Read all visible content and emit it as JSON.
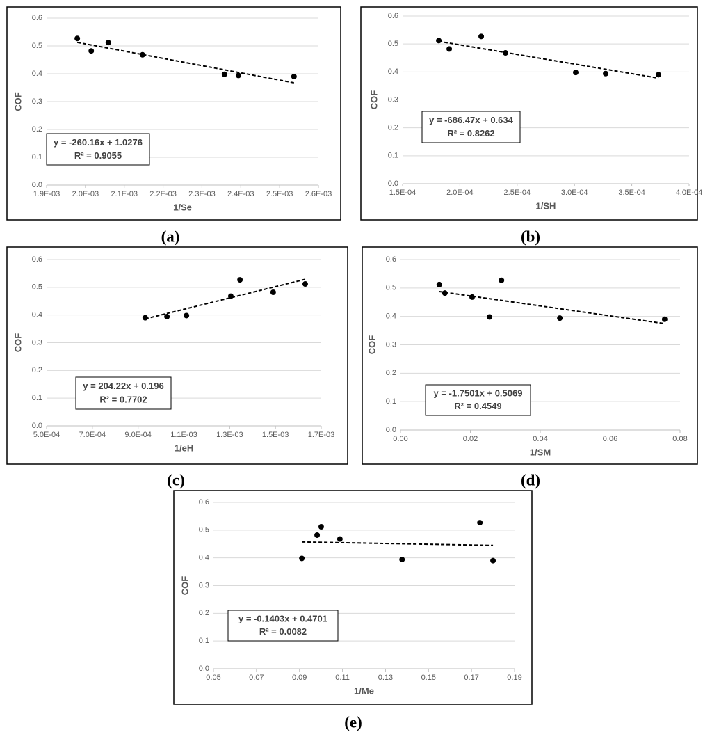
{
  "chart_data": [
    {
      "type": "scatter",
      "caption": "(a)",
      "x_label": "1/Se",
      "y_label": "COF",
      "x": [
        0.001979,
        0.002015,
        0.002059,
        0.002147,
        0.002358,
        0.002394,
        0.002537
      ],
      "values": [
        0.527,
        0.482,
        0.512,
        0.468,
        0.398,
        0.394,
        0.39
      ],
      "color": "#000000",
      "trendline": {
        "slope": -260.16,
        "intercept": 1.0276,
        "style": "dashed"
      },
      "equation": "y = -260.16x + 1.0276",
      "r_squared": "R² = 0.9055",
      "xlim": [
        0.0019,
        0.0026
      ],
      "xticks": [
        {
          "value": 0.0019,
          "label": "1.9E-03"
        },
        {
          "value": 0.002,
          "label": "2.0E-03"
        },
        {
          "value": 0.0021,
          "label": "2.1E-03"
        },
        {
          "value": 0.0022,
          "label": "2.2E-03"
        },
        {
          "value": 0.0023,
          "label": "2.3E-03"
        },
        {
          "value": 0.0024,
          "label": "2.4E-03"
        },
        {
          "value": 0.0025,
          "label": "2.5E-03"
        },
        {
          "value": 0.0026,
          "label": "2.6E-03"
        }
      ],
      "ylim": [
        0,
        0.6
      ],
      "yticks": [
        {
          "value": 0,
          "label": "0.0"
        },
        0.1,
        0.2,
        0.3,
        0.4,
        0.5,
        0.6
      ],
      "grid": true
    },
    {
      "type": "scatter",
      "caption": "(b)",
      "x_label": "1/SH",
      "y_label": "COF",
      "x": [
        0.0001816,
        0.0001907,
        0.0002186,
        0.0002398,
        0.0003011,
        0.0003272,
        0.0003733
      ],
      "values": [
        0.512,
        0.482,
        0.527,
        0.468,
        0.398,
        0.394,
        0.39
      ],
      "color": "#000000",
      "trendline": {
        "slope": -686.47,
        "intercept": 0.634,
        "style": "dashed"
      },
      "equation": "y = -686.47x + 0.634",
      "r_squared": "R² = 0.8262",
      "xlim": [
        0.00015,
        0.0004
      ],
      "xticks": [
        {
          "value": 0.00015,
          "label": "1.5E-04"
        },
        {
          "value": 0.0002,
          "label": "2.0E-04"
        },
        {
          "value": 0.00025,
          "label": "2.5E-04"
        },
        {
          "value": 0.0003,
          "label": "3.0E-04"
        },
        {
          "value": 0.00035,
          "label": "3.5E-04"
        },
        {
          "value": 0.0004,
          "label": "4.0E-04"
        }
      ],
      "ylim": [
        0,
        0.6
      ],
      "yticks": [
        {
          "value": 0,
          "label": "0.0"
        },
        0.1,
        0.2,
        0.3,
        0.4,
        0.5,
        0.6
      ],
      "grid": true
    },
    {
      "type": "scatter",
      "caption": "(c)",
      "x_label": "1/eH",
      "y_label": "COF",
      "x": [
        0.000931,
        0.001026,
        0.001111,
        0.001305,
        0.001345,
        0.00149,
        0.00163
      ],
      "values": [
        0.39,
        0.394,
        0.398,
        0.468,
        0.527,
        0.482,
        0.512
      ],
      "color": "#000000",
      "trendline": {
        "slope": 204.22,
        "intercept": 0.196,
        "style": "dashed"
      },
      "equation": "y = 204.22x + 0.196",
      "r_squared": "R² = 0.7702",
      "xlim": [
        0.0005,
        0.0017
      ],
      "xticks": [
        {
          "value": 0.0005,
          "label": "5.0E-04"
        },
        {
          "value": 0.0007,
          "label": "7.0E-04"
        },
        {
          "value": 0.0009,
          "label": "9.0E-04"
        },
        {
          "value": 0.0011,
          "label": "1.1E-03"
        },
        {
          "value": 0.0013,
          "label": "1.3E-03"
        },
        {
          "value": 0.0015,
          "label": "1.5E-03"
        },
        {
          "value": 0.0017,
          "label": "1.7E-03"
        }
      ],
      "ylim": [
        0,
        0.6
      ],
      "yticks": [
        {
          "value": 0,
          "label": "0.0"
        },
        0.1,
        0.2,
        0.3,
        0.4,
        0.5,
        0.6
      ],
      "grid": true
    },
    {
      "type": "scatter",
      "caption": "(d)",
      "x_label": "1/SM",
      "y_label": "COF",
      "x": [
        0.0111,
        0.0127,
        0.0205,
        0.0255,
        0.0289,
        0.0456,
        0.0756
      ],
      "values": [
        0.512,
        0.482,
        0.468,
        0.398,
        0.527,
        0.394,
        0.39
      ],
      "color": "#000000",
      "trendline": {
        "slope": -1.7501,
        "intercept": 0.5069,
        "style": "dashed"
      },
      "equation": "y = -1.7501x + 0.5069",
      "r_squared": "R² = 0.4549",
      "xlim": [
        0,
        0.08
      ],
      "xticks": [
        {
          "value": 0,
          "label": "0.00"
        },
        0.02,
        0.04,
        0.06,
        0.08
      ],
      "ylim": [
        0,
        0.6
      ],
      "yticks": [
        {
          "value": 0,
          "label": "0.0"
        },
        0.1,
        0.2,
        0.3,
        0.4,
        0.5,
        0.6
      ],
      "grid": true
    },
    {
      "type": "scatter",
      "caption": "(e)",
      "x_label": "1/Me",
      "y_label": "COF",
      "x": [
        0.0911,
        0.0982,
        0.1001,
        0.1088,
        0.1377,
        0.1739,
        0.18
      ],
      "values": [
        0.398,
        0.482,
        0.512,
        0.468,
        0.394,
        0.527,
        0.39
      ],
      "color": "#000000",
      "trendline": {
        "slope": -0.1403,
        "intercept": 0.4701,
        "style": "dashed"
      },
      "equation": "y = -0.1403x + 0.4701",
      "r_squared": "R² = 0.0082",
      "xlim": [
        0.05,
        0.19
      ],
      "xticks": [
        0.05,
        0.07,
        0.09,
        0.11,
        0.13,
        0.15,
        0.17,
        0.19
      ],
      "ylim": [
        0,
        0.6
      ],
      "yticks": [
        {
          "value": 0,
          "label": "0.0"
        },
        0.1,
        0.2,
        0.3,
        0.4,
        0.5,
        0.6
      ],
      "grid": true
    }
  ]
}
